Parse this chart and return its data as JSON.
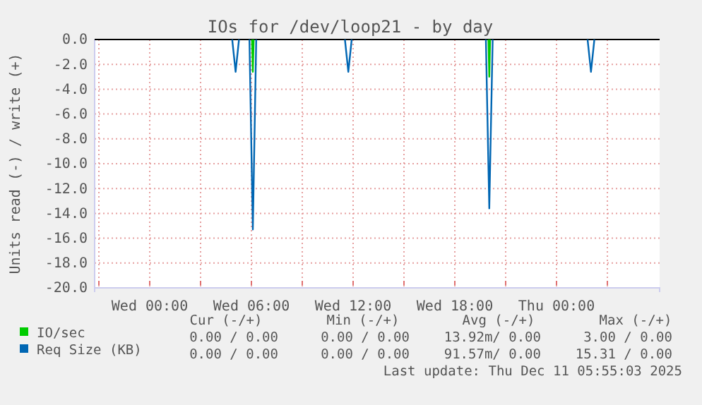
{
  "chart_data": {
    "type": "line",
    "title": "IOs for /dev/loop21 - by day",
    "ylabel": "Units read (-) / write (+)",
    "series": [
      {
        "name": "IO/sec",
        "color": "#00cc00",
        "x": [
          "2025-12-10T06:02",
          "2025-12-10T06:05",
          "2025-12-10T06:08",
          "2025-12-10T12:00",
          "2025-12-10T19:59",
          "2025-12-10T20:02",
          "2025-12-10T20:05"
        ],
        "values": [
          0,
          -2.6,
          0,
          null,
          0,
          -3.0,
          0
        ]
      },
      {
        "name": "Req Size (KB)",
        "color": "#0066b3",
        "x": [
          "2025-12-10T04:52",
          "2025-12-10T05:04",
          "2025-12-10T05:16",
          "2025-12-10T05:30",
          "2025-12-10T05:53",
          "2025-12-10T06:05",
          "2025-12-10T06:17",
          "2025-12-10T09:00",
          "2025-12-10T11:31",
          "2025-12-10T11:43",
          "2025-12-10T11:55",
          "2025-12-10T15:00",
          "2025-12-10T19:50",
          "2025-12-10T20:02",
          "2025-12-10T20:14",
          "2025-12-10T23:00",
          "2025-12-11T01:50",
          "2025-12-11T02:02",
          "2025-12-11T02:14"
        ],
        "values": [
          0,
          -2.6,
          0,
          null,
          0,
          -15.3,
          0,
          null,
          0,
          -2.6,
          0,
          null,
          0,
          -13.6,
          0,
          null,
          0,
          -2.6,
          0
        ]
      }
    ],
    "xlim": [
      "2025-12-09T20:45",
      "2025-12-11T06:05"
    ],
    "xticks": [
      {
        "value": "2025-12-09T21:00",
        "label": null
      },
      {
        "value": "2025-12-10T00:00",
        "label": "Wed 00:00"
      },
      {
        "value": "2025-12-10T03:00",
        "label": null
      },
      {
        "value": "2025-12-10T06:00",
        "label": "Wed 06:00"
      },
      {
        "value": "2025-12-10T09:00",
        "label": null
      },
      {
        "value": "2025-12-10T12:00",
        "label": "Wed 12:00"
      },
      {
        "value": "2025-12-10T15:00",
        "label": null
      },
      {
        "value": "2025-12-10T18:00",
        "label": "Wed 18:00"
      },
      {
        "value": "2025-12-10T21:00",
        "label": null
      },
      {
        "value": "2025-12-11T00:00",
        "label": "Thu 00:00"
      },
      {
        "value": "2025-12-11T03:00",
        "label": null
      }
    ],
    "ylim": [
      -20,
      0
    ],
    "yticks": [
      {
        "value": 0,
        "label": "0.0"
      },
      {
        "value": -2,
        "label": "-2.0"
      },
      {
        "value": -4,
        "label": "-4.0"
      },
      {
        "value": -6,
        "label": "-6.0"
      },
      {
        "value": -8,
        "label": "-8.0"
      },
      {
        "value": -10,
        "label": "-10.0"
      },
      {
        "value": -12,
        "label": "-12.0"
      },
      {
        "value": -14,
        "label": "-14.0"
      },
      {
        "value": -16,
        "label": "-16.0"
      },
      {
        "value": -18,
        "label": "-18.0"
      },
      {
        "value": -20,
        "label": "-20.0"
      }
    ],
    "grid": true,
    "legend": "bottom left",
    "annotations": [
      "Cur (-/+)",
      "Min (-/+)",
      "Avg (-/+)",
      "Max (-/+)",
      "0.00 / 0.00",
      "0.00 / 0.00",
      "13.92m/ 0.00",
      "3.00 / 0.00",
      "0.00 / 0.00",
      "0.00 / 0.00",
      "91.57m/ 0.00",
      "15.31 / 0.00",
      "Last update: Thu Dec 11 05:55:03 2025"
    ]
  }
}
